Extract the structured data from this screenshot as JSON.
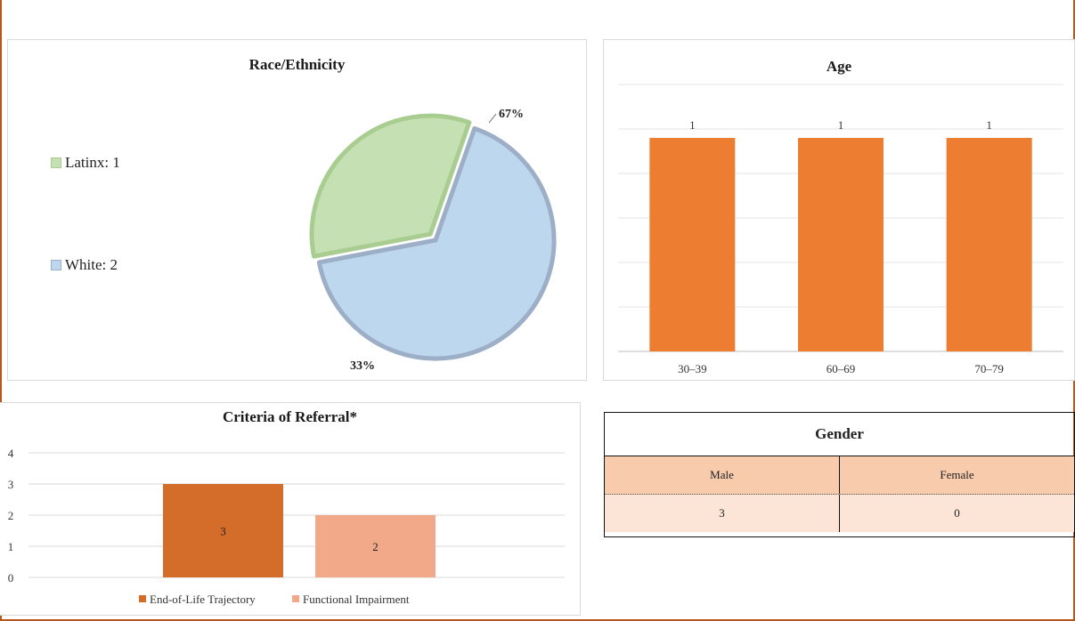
{
  "colors": {
    "latinx": "#c5e0b3",
    "latinx_edge": "#a9cd90",
    "white": "#bdd7ee",
    "white_edge": "#9dafc6",
    "age_bar": "#ed7d31",
    "eol": "#d46c2a",
    "functional": "#f2a98a",
    "header": "#f8cbad",
    "row": "#fce4d6"
  },
  "race": {
    "title": "Race/Ethnicity",
    "legend": [
      {
        "label": "Latinx: 1",
        "color": "#c5e0b3"
      },
      {
        "label": "White: 2",
        "color": "#bdd7ee"
      }
    ]
  },
  "age": {
    "title": "Age"
  },
  "criteria": {
    "title": "Criteria of Referral*"
  },
  "gender": {
    "title": "Gender",
    "headers": [
      "Male",
      "Female"
    ],
    "values": [
      "3",
      "0"
    ]
  },
  "chart_data": [
    {
      "type": "pie",
      "title": "Race/Ethnicity",
      "categories": [
        "Latinx",
        "White"
      ],
      "values": [
        1,
        2
      ],
      "data_labels": [
        "33%",
        "67%"
      ],
      "legend": "left"
    },
    {
      "type": "bar",
      "title": "Age",
      "categories": [
        "30–39",
        "60–69",
        "70–79"
      ],
      "values": [
        1,
        1,
        1
      ],
      "data_labels": [
        "1",
        "1",
        "1"
      ],
      "ylim": [
        0,
        1.25
      ],
      "grid": true
    },
    {
      "type": "bar",
      "title": "Criteria of Referral*",
      "series": [
        {
          "name": "End-of-Life Trajectory",
          "values": [
            3
          ]
        },
        {
          "name": "Functional Impairment",
          "values": [
            2
          ]
        }
      ],
      "y_ticks": [
        "0",
        "1",
        "2",
        "3",
        "4"
      ],
      "ylim": [
        0,
        4
      ],
      "grid": true,
      "legend": "bottom"
    }
  ]
}
